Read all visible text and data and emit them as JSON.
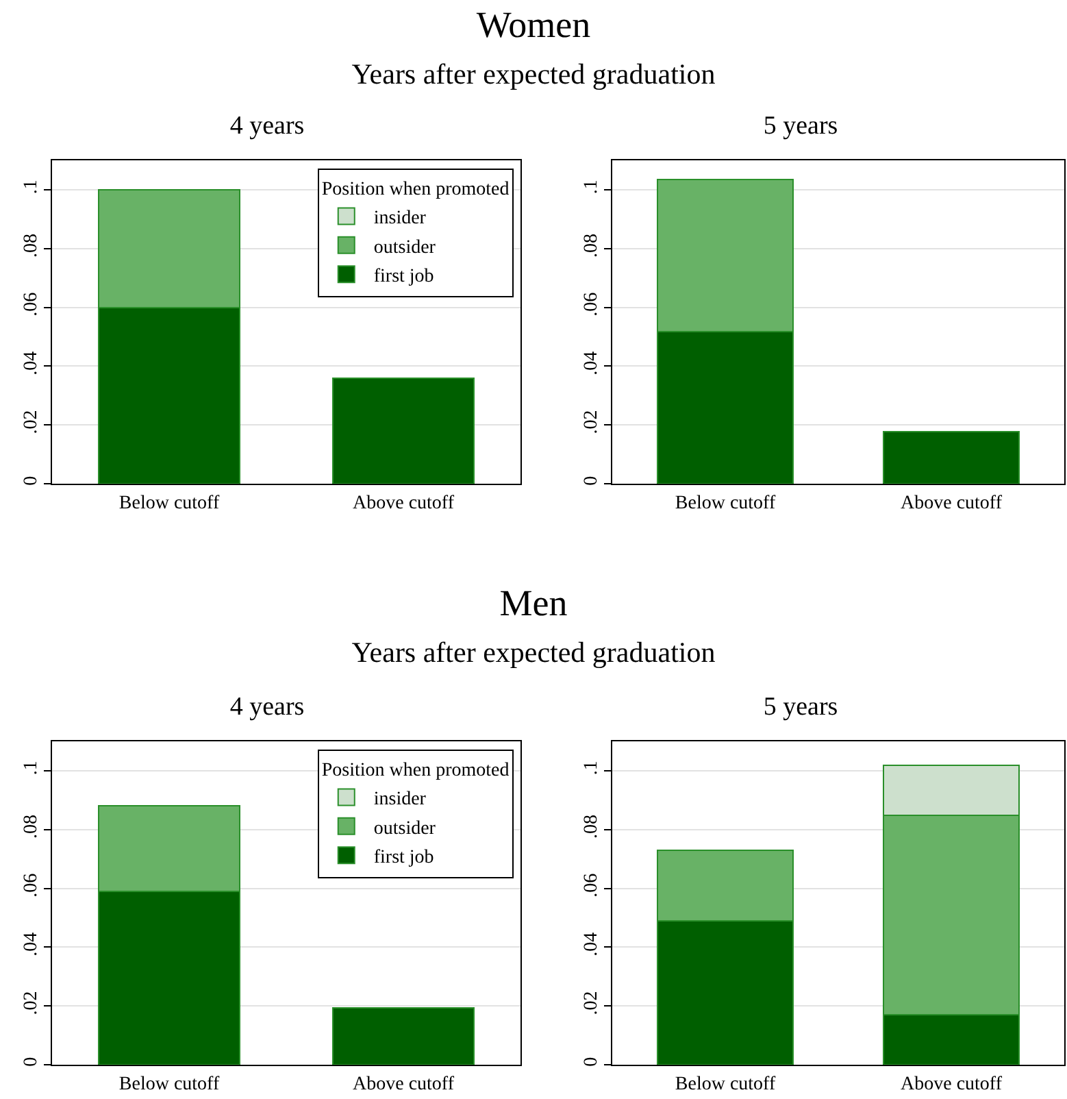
{
  "chart_data": [
    {
      "type": "other",
      "title": "Women",
      "subtitle": "Years after expected graduation"
    },
    {
      "type": "bar",
      "title": "4 years",
      "stacked": true,
      "categories": [
        "Below cutoff",
        "Above cutoff"
      ],
      "legend": "top right",
      "legend_title": "Position when promoted",
      "grid": "y",
      "ylim": [
        0,
        0.11
      ],
      "yticks": [
        {
          "value": 0,
          "label": "0"
        },
        {
          "value": 0.02,
          "label": ".02"
        },
        {
          "value": 0.04,
          "label": ".04"
        },
        {
          "value": 0.06,
          "label": ".06"
        },
        {
          "value": 0.08,
          "label": ".08"
        },
        {
          "value": 0.1,
          "label": ".1"
        }
      ],
      "series": [
        {
          "name": "first job",
          "color": "#005f00",
          "values": [
            0.06,
            0.036
          ]
        },
        {
          "name": "outsider",
          "color": "#68b266",
          "values": [
            0.04,
            null
          ]
        },
        {
          "name": "insider",
          "color": "#cde0cd",
          "values": [
            null,
            null
          ]
        }
      ]
    },
    {
      "type": "bar",
      "title": "5 years",
      "stacked": true,
      "categories": [
        "Below cutoff",
        "Above cutoff"
      ],
      "grid": "y",
      "ylim": [
        0,
        0.11
      ],
      "yticks": [
        {
          "value": 0,
          "label": "0"
        },
        {
          "value": 0.02,
          "label": ".02"
        },
        {
          "value": 0.04,
          "label": ".04"
        },
        {
          "value": 0.06,
          "label": ".06"
        },
        {
          "value": 0.08,
          "label": ".08"
        },
        {
          "value": 0.1,
          "label": ".1"
        }
      ],
      "series": [
        {
          "color": "#005f00",
          "values": [
            0.0517,
            0.0176
          ]
        },
        {
          "color": "#68b266",
          "values": [
            0.0517,
            null
          ]
        }
      ]
    },
    {
      "type": "other",
      "title": "Men",
      "subtitle": "Years after expected graduation"
    },
    {
      "type": "bar",
      "title": "4 years",
      "stacked": true,
      "categories": [
        "Below cutoff",
        "Above cutoff"
      ],
      "legend": "top right",
      "legend_title": "Position when promoted",
      "grid": "y",
      "ylim": [
        0,
        0.11
      ],
      "yticks": [
        {
          "value": 0,
          "label": "0"
        },
        {
          "value": 0.02,
          "label": ".02"
        },
        {
          "value": 0.04,
          "label": ".04"
        },
        {
          "value": 0.06,
          "label": ".06"
        },
        {
          "value": 0.08,
          "label": ".08"
        },
        {
          "value": 0.1,
          "label": ".1"
        }
      ],
      "series": [
        {
          "name": "first job",
          "color": "#005f00",
          "values": [
            0.059,
            0.0193
          ]
        },
        {
          "name": "outsider",
          "color": "#68b266",
          "values": [
            0.0291,
            null
          ]
        },
        {
          "name": "insider",
          "color": "#cde0cd",
          "values": [
            null,
            null
          ]
        }
      ]
    },
    {
      "type": "bar",
      "title": "5 years",
      "stacked": true,
      "categories": [
        "Below cutoff",
        "Above cutoff"
      ],
      "grid": "y",
      "ylim": [
        0,
        0.11
      ],
      "yticks": [
        {
          "value": 0,
          "label": "0"
        },
        {
          "value": 0.02,
          "label": ".02"
        },
        {
          "value": 0.04,
          "label": ".04"
        },
        {
          "value": 0.06,
          "label": ".06"
        },
        {
          "value": 0.08,
          "label": ".08"
        },
        {
          "value": 0.1,
          "label": ".1"
        }
      ],
      "series": [
        {
          "color": "#005f00",
          "values": [
            0.049,
            0.0171
          ]
        },
        {
          "color": "#68b266",
          "values": [
            0.024,
            0.0678
          ]
        },
        {
          "color": "#cde0cd",
          "values": [
            null,
            0.0169
          ]
        }
      ]
    }
  ]
}
